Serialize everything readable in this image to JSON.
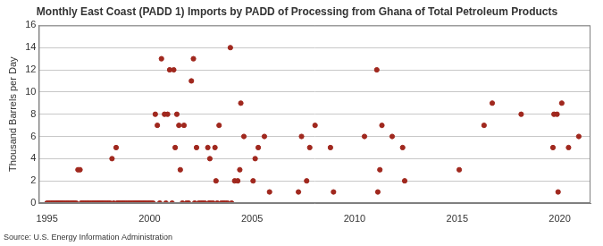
{
  "chart_data": {
    "type": "scatter",
    "title": "Monthly East Coast (PADD 1) Imports by PADD of Processing from Ghana of Total Petroleum Products",
    "y_label": "Thousand Barrels per Day",
    "source": "Source: U.S. Energy Information Administration",
    "color": "#a0281e",
    "marker": "circle",
    "grid": true,
    "xlim": [
      1994.6,
      2021.5
    ],
    "xticks": [
      1995,
      2000,
      2005,
      2010,
      2015,
      2020
    ],
    "ylim": [
      0,
      16
    ],
    "yticks": [
      0,
      2,
      4,
      6,
      8,
      10,
      12,
      14,
      16
    ],
    "x": [
      1995.0,
      1995.08,
      1995.17,
      1995.25,
      1995.33,
      1995.42,
      1995.5,
      1995.58,
      1995.67,
      1995.75,
      1995.83,
      1995.92,
      1996.0,
      1996.08,
      1996.17,
      1996.25,
      1996.33,
      1996.42,
      1996.51,
      1996.61,
      1996.67,
      1996.75,
      1996.83,
      1996.92,
      1997.0,
      1997.08,
      1997.17,
      1997.25,
      1997.33,
      1997.42,
      1997.5,
      1997.58,
      1997.67,
      1997.75,
      1997.83,
      1997.92,
      1998.0,
      1998.08,
      1998.17,
      1998.25,
      1998.37,
      1998.42,
      1998.5,
      1998.58,
      1998.67,
      1998.75,
      1998.83,
      1998.92,
      1999.0,
      1999.08,
      1999.17,
      1999.25,
      1999.33,
      1999.42,
      1999.5,
      1999.58,
      1999.67,
      1999.75,
      1999.83,
      1999.92,
      2000.0,
      2000.08,
      2000.17,
      2000.28,
      2000.38,
      2000.5,
      2000.58,
      2000.73,
      2000.8,
      2000.88,
      2000.98,
      2001.1,
      2001.18,
      2001.25,
      2001.33,
      2001.43,
      2001.5,
      2001.6,
      2001.68,
      2001.8,
      2001.9,
      2002.04,
      2002.14,
      2002.2,
      2002.29,
      2002.4,
      2002.5,
      2002.6,
      2002.7,
      2002.84,
      2002.9,
      2002.94,
      2003.0,
      2003.1,
      2003.19,
      2003.24,
      2003.3,
      2003.39,
      2003.5,
      2003.6,
      2003.7,
      2003.8,
      2003.94,
      2004.0,
      2004.15,
      2004.3,
      2004.4,
      2004.45,
      2004.6,
      2005.05,
      2005.15,
      2005.3,
      2005.6,
      2005.85,
      2007.26,
      2007.41,
      2007.66,
      2007.81,
      2008.07,
      2008.82,
      2008.97,
      2010.48,
      2011.08,
      2011.13,
      2011.23,
      2011.33,
      2011.83,
      2012.34,
      2012.44,
      2015.1,
      2016.31,
      2016.71,
      2018.12,
      2019.67,
      2019.72,
      2019.87,
      2019.92,
      2020.1,
      2020.43,
      2020.93
    ],
    "values": [
      0,
      0,
      0,
      0,
      0,
      0,
      0,
      0,
      0,
      0,
      0,
      0,
      0,
      0,
      0,
      0,
      0,
      0,
      3,
      3,
      0,
      0,
      0,
      0,
      0,
      0,
      0,
      0,
      0,
      0,
      0,
      0,
      0,
      0,
      0,
      0,
      0,
      0,
      4,
      0,
      5,
      0,
      0,
      0,
      0,
      0,
      0,
      0,
      0,
      0,
      0,
      0,
      0,
      0,
      0,
      0,
      0,
      0,
      0,
      0,
      0,
      0,
      0,
      8,
      7,
      0,
      13,
      8,
      0,
      8,
      12,
      0,
      12,
      5,
      8,
      7,
      3,
      0,
      7,
      0,
      0,
      11,
      13,
      0,
      5,
      0,
      0,
      0,
      0,
      5,
      0,
      4,
      0,
      0,
      5,
      2,
      0,
      7,
      0,
      0,
      0,
      0,
      14,
      0,
      2,
      2,
      3,
      9,
      6,
      2,
      4,
      5,
      6,
      1,
      1,
      6,
      2,
      5,
      7,
      5,
      1,
      6,
      12,
      1,
      3,
      7,
      6,
      5,
      2,
      3,
      7,
      9,
      8,
      5,
      8,
      8,
      1,
      9,
      5,
      6
    ]
  }
}
